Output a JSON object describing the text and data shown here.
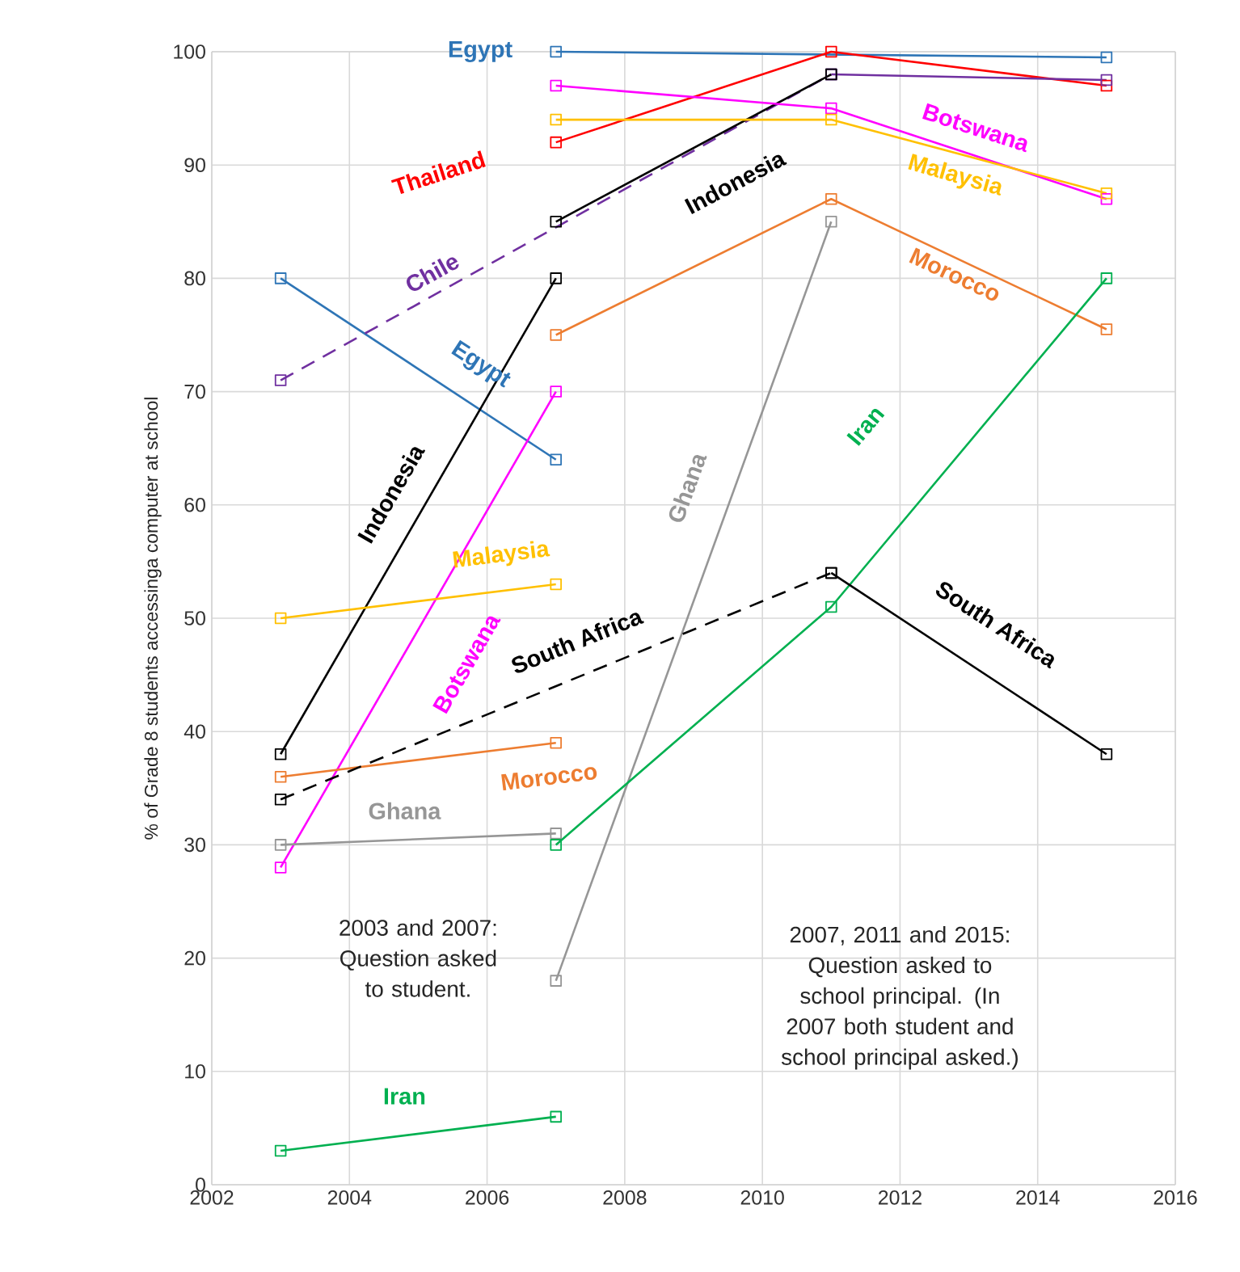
{
  "chart_data": {
    "type": "line",
    "ylabel": "% of Grade 8 students accessinga computer at school",
    "xlim": [
      2002,
      2016
    ],
    "xticks": [
      2002,
      2004,
      2006,
      2008,
      2010,
      2012,
      2014,
      2016
    ],
    "ylim": [
      0,
      100
    ],
    "yticks": [
      0,
      10,
      20,
      30,
      40,
      50,
      60,
      70,
      80,
      90,
      100
    ],
    "grid": true,
    "marker": "square",
    "legend": false,
    "series": [
      {
        "name": "Egypt",
        "color": "#2e75b6",
        "x": [
          2003,
          2007
        ],
        "values": [
          80,
          64
        ]
      },
      {
        "name": "Egypt",
        "color": "#2e75b6",
        "x": [
          2007,
          2015
        ],
        "values": [
          100,
          99.5
        ]
      },
      {
        "name": "Thailand",
        "color": "#ff0000",
        "x": [
          2007,
          2011,
          2015
        ],
        "values": [
          92,
          100,
          97
        ]
      },
      {
        "name": "Chile",
        "color": "#7030a0",
        "line_style": "dashed",
        "x": [
          2003,
          2011
        ],
        "values": [
          71,
          98
        ]
      },
      {
        "color": "#7030a0",
        "x": [
          2011,
          2015
        ],
        "values": [
          98,
          97.5
        ]
      },
      {
        "name": "Indonesia",
        "color": "#000000",
        "x": [
          2003,
          2007
        ],
        "values": [
          38,
          80
        ]
      },
      {
        "name": "Indonesia",
        "color": "#000000",
        "x": [
          2007,
          2011
        ],
        "values": [
          85,
          98
        ]
      },
      {
        "name": "Botswana",
        "color": "#ff00ff",
        "x": [
          2003,
          2007
        ],
        "values": [
          28,
          70
        ]
      },
      {
        "name": "Botswana",
        "color": "#ff00ff",
        "x": [
          2007,
          2011,
          2015
        ],
        "values": [
          97,
          95,
          87
        ]
      },
      {
        "name": "Malaysia",
        "color": "#ffc000",
        "x": [
          2003,
          2007
        ],
        "values": [
          50,
          53
        ]
      },
      {
        "name": "Malaysia",
        "color": "#ffc000",
        "x": [
          2007,
          2011,
          2015
        ],
        "values": [
          94,
          94,
          87.5
        ]
      },
      {
        "name": "Morocco",
        "color": "#ed7d31",
        "x": [
          2003,
          2007
        ],
        "values": [
          36,
          39
        ]
      },
      {
        "name": "Morocco",
        "color": "#ed7d31",
        "x": [
          2007,
          2011,
          2015
        ],
        "values": [
          75,
          87,
          75.5
        ]
      },
      {
        "name": "Ghana",
        "color": "#969696",
        "x": [
          2003,
          2007
        ],
        "values": [
          30,
          31
        ]
      },
      {
        "name": "Ghana",
        "color": "#969696",
        "x": [
          2007,
          2011
        ],
        "values": [
          18,
          85
        ]
      },
      {
        "name": "Iran",
        "color": "#00b050",
        "x": [
          2003,
          2007
        ],
        "values": [
          3,
          6
        ]
      },
      {
        "name": "Iran",
        "color": "#00b050",
        "x": [
          2007,
          2011,
          2015
        ],
        "values": [
          30,
          51,
          80
        ]
      },
      {
        "name": "South Africa",
        "color": "#000000",
        "line_style": "dashed",
        "x": [
          2003,
          2011
        ],
        "values": [
          34,
          54
        ]
      },
      {
        "name": "South Africa",
        "color": "#000000",
        "x": [
          2011,
          2015
        ],
        "values": [
          54,
          38
        ]
      }
    ],
    "annotations": [
      "2003 and 2007: Question asked to student.",
      "2007, 2011 and 2015: Question asked to school principal. (In 2007 both student and school principal asked.)"
    ]
  }
}
